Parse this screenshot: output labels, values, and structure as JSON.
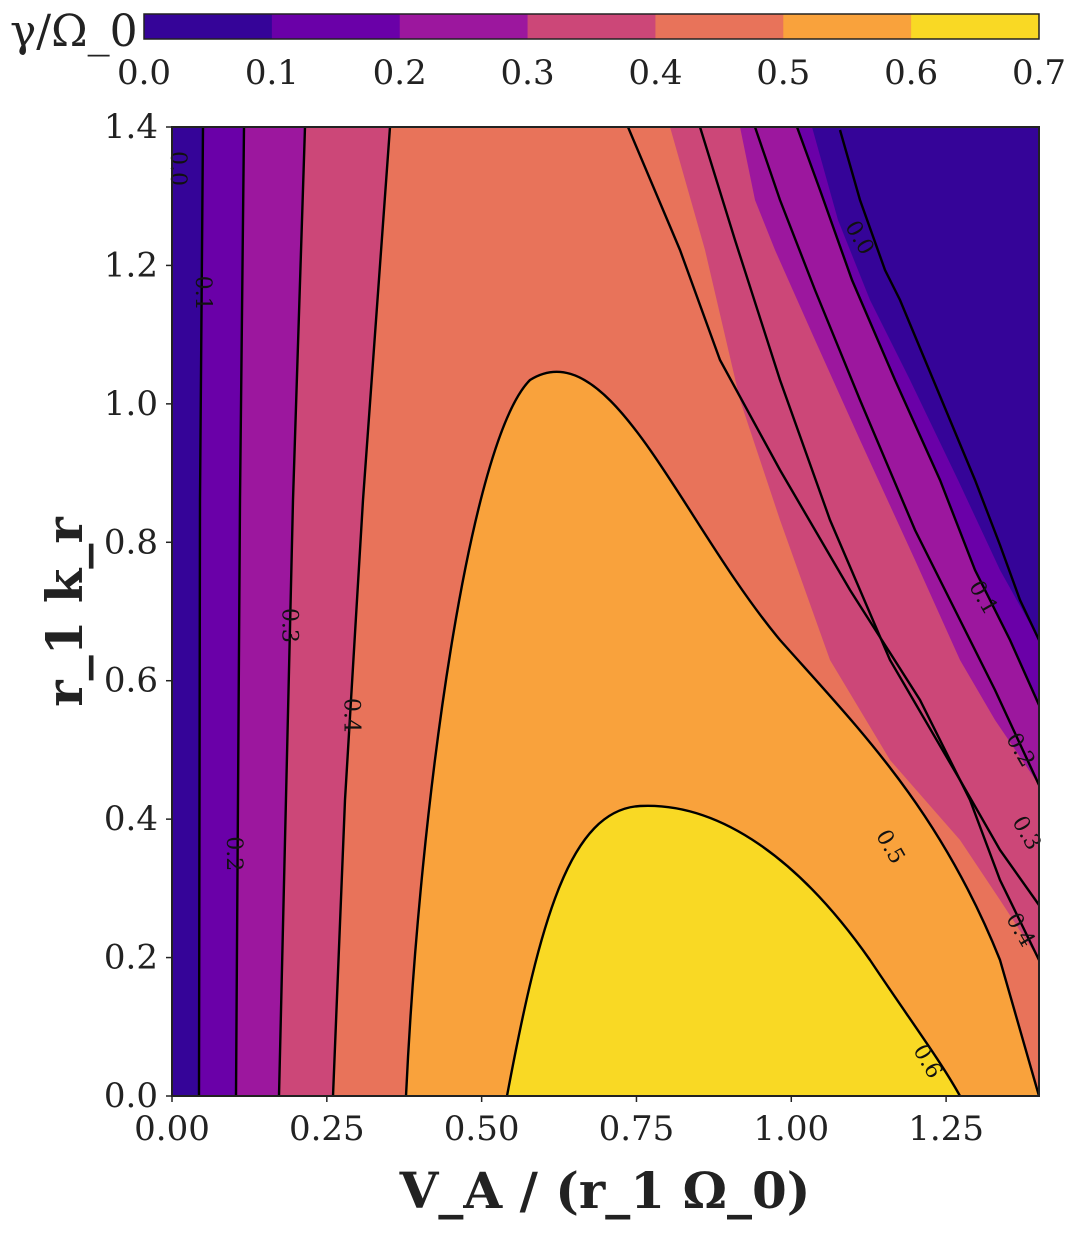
{
  "chart_data": {
    "type": "contourf",
    "xlabel": "V_A / (r_1 Ω_0)",
    "ylabel": "r_1 k_r",
    "xlim": [
      0.0,
      1.4
    ],
    "ylim": [
      0.0,
      1.4
    ],
    "x_ticks": [
      "0.00",
      "0.25",
      "0.50",
      "0.75",
      "1.00",
      "1.25"
    ],
    "y_ticks": [
      "0.0",
      "0.2",
      "0.4",
      "0.6",
      "0.8",
      "1.0",
      "1.2",
      "1.4"
    ],
    "colorbar": {
      "label": "γ/Ω_0",
      "ticks": [
        "0.0",
        "0.1",
        "0.2",
        "0.3",
        "0.4",
        "0.5",
        "0.6",
        "0.7"
      ],
      "levels": [
        0.0,
        0.1,
        0.2,
        0.3,
        0.4,
        0.5,
        0.6,
        0.7
      ],
      "colors": [
        "#350498",
        "#6a00a8",
        "#9c179e",
        "#cc4778",
        "#e8735a",
        "#f9a23c",
        "#f9d924"
      ]
    },
    "contour_labels": [
      {
        "text": "0.0",
        "x": 0.01,
        "y": 1.34
      },
      {
        "text": "0.1",
        "x": 0.05,
        "y": 1.16
      },
      {
        "text": "0.2",
        "x": 0.1,
        "y": 0.35
      },
      {
        "text": "0.3",
        "x": 0.19,
        "y": 0.68
      },
      {
        "text": "0.4",
        "x": 0.29,
        "y": 0.55
      },
      {
        "text": "0.0",
        "x": 1.11,
        "y": 1.24
      },
      {
        "text": "0.1",
        "x": 1.31,
        "y": 0.72
      },
      {
        "text": "0.2",
        "x": 1.37,
        "y": 0.5
      },
      {
        "text": "0.3",
        "x": 1.38,
        "y": 0.38
      },
      {
        "text": "0.4",
        "x": 1.37,
        "y": 0.24
      },
      {
        "text": "0.5",
        "x": 1.16,
        "y": 0.36
      },
      {
        "text": "0.6",
        "x": 1.22,
        "y": 0.05
      }
    ],
    "grid": false
  }
}
